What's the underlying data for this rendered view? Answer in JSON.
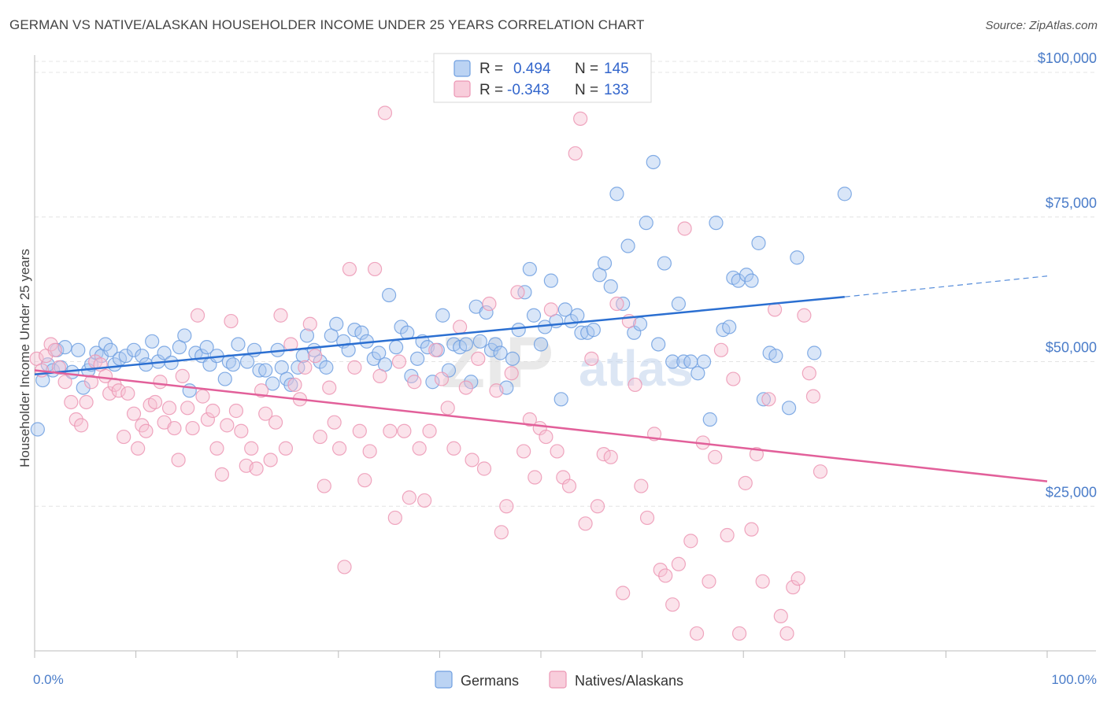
{
  "chart_data": {
    "type": "scatter",
    "title": "GERMAN VS NATIVE/ALASKAN HOUSEHOLDER INCOME UNDER 25 YEARS CORRELATION CHART",
    "source": "Source: ZipAtlas.com",
    "xlabel": "",
    "ylabel": "Householder Income Under 25 years",
    "xlim": [
      0,
      100
    ],
    "ylim": [
      0,
      103000
    ],
    "x_tick_labels": [
      "0.0%",
      "100.0%"
    ],
    "y_ticks": [
      {
        "value": 25000,
        "label": "$25,000"
      },
      {
        "value": 50000,
        "label": "$50,000"
      },
      {
        "value": 75000,
        "label": "$75,000"
      },
      {
        "value": 100000,
        "label": "$100,000"
      }
    ],
    "grid": true,
    "watermark": {
      "part1": "ZIP",
      "part2": "atlas"
    },
    "stats_legend": [
      {
        "r_label": "R =",
        "r_value": "0.494",
        "n_label": "N =",
        "n_value": "145"
      },
      {
        "r_label": "R =",
        "r_value": "-0.343",
        "n_label": "N =",
        "n_value": "133"
      }
    ],
    "legend_position": "top-center",
    "series": [
      {
        "name": "Germans",
        "color": "#6f9fe0",
        "fill": "#aac8f0",
        "line_color": "#2b6fd1",
        "trend": {
          "x0": 0,
          "y0": 47800,
          "x1": 80,
          "y1": 61200,
          "dash_x1": 100,
          "dash_y1": 64800
        },
        "points": [
          [
            0.3,
            38300
          ],
          [
            0.8,
            46800
          ],
          [
            1.3,
            49500
          ],
          [
            1.8,
            48500
          ],
          [
            2.2,
            52000
          ],
          [
            2.6,
            49000
          ],
          [
            3.0,
            52500
          ],
          [
            3.7,
            48200
          ],
          [
            4.3,
            52000
          ],
          [
            4.8,
            45500
          ],
          [
            5.3,
            48500
          ],
          [
            5.6,
            49500
          ],
          [
            6.1,
            51500
          ],
          [
            6.6,
            51000
          ],
          [
            7.0,
            53000
          ],
          [
            7.5,
            52000
          ],
          [
            7.9,
            49500
          ],
          [
            8.4,
            50500
          ],
          [
            9.0,
            51000
          ],
          [
            9.8,
            52000
          ],
          [
            10.6,
            51000
          ],
          [
            11.0,
            49500
          ],
          [
            11.6,
            53500
          ],
          [
            12.2,
            50000
          ],
          [
            12.8,
            51500
          ],
          [
            13.5,
            49800
          ],
          [
            14.3,
            52500
          ],
          [
            14.8,
            54500
          ],
          [
            15.3,
            45000
          ],
          [
            15.9,
            51500
          ],
          [
            16.5,
            51000
          ],
          [
            17.0,
            52500
          ],
          [
            17.3,
            49500
          ],
          [
            18.0,
            51000
          ],
          [
            18.8,
            47000
          ],
          [
            19.2,
            50000
          ],
          [
            19.6,
            49500
          ],
          [
            20.1,
            53000
          ],
          [
            21.0,
            50000
          ],
          [
            21.7,
            52000
          ],
          [
            22.2,
            48500
          ],
          [
            22.8,
            48500
          ],
          [
            23.5,
            46200
          ],
          [
            24.0,
            52000
          ],
          [
            24.4,
            49000
          ],
          [
            24.9,
            47000
          ],
          [
            25.3,
            46000
          ],
          [
            26.0,
            49000
          ],
          [
            26.5,
            51000
          ],
          [
            26.9,
            54500
          ],
          [
            27.6,
            52000
          ],
          [
            28.2,
            50000
          ],
          [
            28.8,
            49000
          ],
          [
            29.3,
            54500
          ],
          [
            29.8,
            56500
          ],
          [
            30.5,
            53500
          ],
          [
            31.0,
            52000
          ],
          [
            31.6,
            55500
          ],
          [
            32.3,
            55000
          ],
          [
            32.8,
            53500
          ],
          [
            33.5,
            50500
          ],
          [
            34.0,
            51500
          ],
          [
            34.6,
            49500
          ],
          [
            35.0,
            61500
          ],
          [
            35.7,
            52500
          ],
          [
            36.2,
            56000
          ],
          [
            36.8,
            55000
          ],
          [
            37.2,
            47500
          ],
          [
            37.8,
            50500
          ],
          [
            38.3,
            53500
          ],
          [
            38.8,
            52500
          ],
          [
            39.3,
            46500
          ],
          [
            39.8,
            52000
          ],
          [
            40.3,
            58000
          ],
          [
            40.9,
            48500
          ],
          [
            41.4,
            53000
          ],
          [
            42.0,
            52500
          ],
          [
            42.6,
            53000
          ],
          [
            43.1,
            46500
          ],
          [
            43.6,
            59500
          ],
          [
            44.0,
            53500
          ],
          [
            44.6,
            58500
          ],
          [
            45.1,
            52000
          ],
          [
            45.5,
            53000
          ],
          [
            46.0,
            51500
          ],
          [
            46.6,
            45500
          ],
          [
            47.2,
            50500
          ],
          [
            47.8,
            55500
          ],
          [
            48.4,
            62000
          ],
          [
            48.9,
            66000
          ],
          [
            49.3,
            58000
          ],
          [
            50.0,
            53000
          ],
          [
            50.4,
            56000
          ],
          [
            51.0,
            64000
          ],
          [
            51.5,
            57000
          ],
          [
            52.0,
            43500
          ],
          [
            52.4,
            59000
          ],
          [
            53.0,
            57000
          ],
          [
            53.6,
            58000
          ],
          [
            54.0,
            55000
          ],
          [
            54.6,
            55000
          ],
          [
            55.2,
            55500
          ],
          [
            55.8,
            65000
          ],
          [
            56.3,
            67000
          ],
          [
            56.9,
            63000
          ],
          [
            57.5,
            79000
          ],
          [
            58.1,
            60000
          ],
          [
            58.6,
            70000
          ],
          [
            59.2,
            55000
          ],
          [
            59.8,
            56500
          ],
          [
            60.4,
            74000
          ],
          [
            61.1,
            84500
          ],
          [
            61.6,
            53000
          ],
          [
            62.2,
            67000
          ],
          [
            63.0,
            50000
          ],
          [
            63.6,
            60000
          ],
          [
            64.1,
            50000
          ],
          [
            64.8,
            50000
          ],
          [
            65.5,
            48000
          ],
          [
            66.1,
            50000
          ],
          [
            66.7,
            40000
          ],
          [
            67.3,
            74000
          ],
          [
            68.0,
            55500
          ],
          [
            68.6,
            56000
          ],
          [
            69.0,
            64500
          ],
          [
            69.5,
            64000
          ],
          [
            70.3,
            65000
          ],
          [
            70.8,
            64000
          ],
          [
            71.5,
            70500
          ],
          [
            72.0,
            43500
          ],
          [
            72.6,
            51500
          ],
          [
            73.2,
            51000
          ],
          [
            74.5,
            42000
          ],
          [
            75.3,
            68000
          ],
          [
            77.0,
            51500
          ],
          [
            80.0,
            79000
          ]
        ]
      },
      {
        "name": "Natives/Alaskans",
        "color": "#ec96b4",
        "fill": "#f6c0d2",
        "line_color": "#e2609a",
        "trend": {
          "x0": 0,
          "y0": 48500,
          "x1": 100,
          "y1": 29300
        },
        "points": [
          [
            0.2,
            50500
          ],
          [
            0.7,
            48500
          ],
          [
            1.1,
            51000
          ],
          [
            1.6,
            53000
          ],
          [
            2.0,
            52000
          ],
          [
            2.4,
            49000
          ],
          [
            3.0,
            46500
          ],
          [
            3.6,
            43000
          ],
          [
            4.1,
            40000
          ],
          [
            4.6,
            39000
          ],
          [
            5.1,
            43000
          ],
          [
            5.6,
            46500
          ],
          [
            6.0,
            50000
          ],
          [
            6.5,
            49500
          ],
          [
            7.0,
            47500
          ],
          [
            7.4,
            44500
          ],
          [
            7.9,
            46000
          ],
          [
            8.3,
            45000
          ],
          [
            8.8,
            37000
          ],
          [
            9.2,
            44500
          ],
          [
            9.8,
            41000
          ],
          [
            10.2,
            35000
          ],
          [
            10.6,
            39000
          ],
          [
            11.0,
            38000
          ],
          [
            11.4,
            42500
          ],
          [
            11.9,
            43000
          ],
          [
            12.4,
            46500
          ],
          [
            12.8,
            39500
          ],
          [
            13.3,
            42000
          ],
          [
            13.8,
            38500
          ],
          [
            14.2,
            33000
          ],
          [
            14.6,
            47500
          ],
          [
            15.1,
            42000
          ],
          [
            15.6,
            38500
          ],
          [
            16.1,
            58000
          ],
          [
            16.6,
            44000
          ],
          [
            17.1,
            40000
          ],
          [
            17.6,
            41500
          ],
          [
            18.0,
            35000
          ],
          [
            18.5,
            30500
          ],
          [
            19.0,
            39000
          ],
          [
            19.4,
            57000
          ],
          [
            19.9,
            41500
          ],
          [
            20.4,
            38000
          ],
          [
            20.9,
            32000
          ],
          [
            21.4,
            35000
          ],
          [
            21.9,
            31500
          ],
          [
            22.4,
            45000
          ],
          [
            22.8,
            41000
          ],
          [
            23.3,
            33000
          ],
          [
            23.8,
            39500
          ],
          [
            24.3,
            58000
          ],
          [
            24.8,
            35000
          ],
          [
            25.3,
            53000
          ],
          [
            25.7,
            46000
          ],
          [
            26.2,
            43500
          ],
          [
            26.7,
            49000
          ],
          [
            27.2,
            56500
          ],
          [
            27.7,
            51000
          ],
          [
            28.2,
            37000
          ],
          [
            28.6,
            28500
          ],
          [
            29.1,
            45500
          ],
          [
            29.6,
            39500
          ],
          [
            30.1,
            35000
          ],
          [
            30.6,
            14500
          ],
          [
            31.1,
            66000
          ],
          [
            31.6,
            49000
          ],
          [
            32.1,
            38000
          ],
          [
            32.6,
            29500
          ],
          [
            33.1,
            34500
          ],
          [
            33.6,
            66000
          ],
          [
            34.1,
            47500
          ],
          [
            34.6,
            93000
          ],
          [
            35.1,
            38000
          ],
          [
            35.6,
            23000
          ],
          [
            36.0,
            50000
          ],
          [
            36.5,
            38000
          ],
          [
            37.0,
            26500
          ],
          [
            37.5,
            46500
          ],
          [
            38.0,
            35000
          ],
          [
            38.5,
            26000
          ],
          [
            39.0,
            38000
          ],
          [
            39.6,
            52000
          ],
          [
            40.2,
            47000
          ],
          [
            40.8,
            42000
          ],
          [
            41.4,
            35000
          ],
          [
            42.0,
            56000
          ],
          [
            42.6,
            45500
          ],
          [
            43.2,
            33000
          ],
          [
            43.8,
            50500
          ],
          [
            44.4,
            31500
          ],
          [
            44.9,
            60000
          ],
          [
            45.6,
            45000
          ],
          [
            46.1,
            20500
          ],
          [
            46.6,
            25000
          ],
          [
            47.1,
            48000
          ],
          [
            47.7,
            62000
          ],
          [
            48.3,
            34500
          ],
          [
            48.9,
            40000
          ],
          [
            49.4,
            30000
          ],
          [
            49.9,
            38500
          ],
          [
            50.5,
            37000
          ],
          [
            51.0,
            59000
          ],
          [
            51.6,
            34500
          ],
          [
            52.2,
            30000
          ],
          [
            52.8,
            28500
          ],
          [
            53.4,
            86000
          ],
          [
            53.9,
            92000
          ],
          [
            54.4,
            22000
          ],
          [
            55.0,
            50500
          ],
          [
            55.6,
            25000
          ],
          [
            56.2,
            34000
          ],
          [
            56.9,
            33500
          ],
          [
            57.5,
            60000
          ],
          [
            58.1,
            10000
          ],
          [
            58.7,
            57000
          ],
          [
            59.3,
            46000
          ],
          [
            59.9,
            28500
          ],
          [
            60.5,
            23000
          ],
          [
            61.2,
            37500
          ],
          [
            61.8,
            14000
          ],
          [
            62.3,
            13000
          ],
          [
            63.0,
            8000
          ],
          [
            63.6,
            15000
          ],
          [
            64.2,
            73000
          ],
          [
            64.8,
            19000
          ],
          [
            65.4,
            3000
          ],
          [
            66.0,
            36000
          ],
          [
            66.6,
            12000
          ],
          [
            67.2,
            33500
          ],
          [
            67.8,
            52000
          ],
          [
            68.4,
            20000
          ],
          [
            69.0,
            47000
          ],
          [
            69.6,
            3000
          ],
          [
            70.2,
            29000
          ],
          [
            70.8,
            21000
          ],
          [
            71.3,
            34000
          ],
          [
            71.9,
            12000
          ],
          [
            72.5,
            43500
          ],
          [
            73.1,
            59000
          ],
          [
            73.7,
            6000
          ],
          [
            74.3,
            3000
          ],
          [
            74.9,
            11000
          ],
          [
            75.4,
            12500
          ],
          [
            76.0,
            58000
          ],
          [
            76.5,
            48000
          ],
          [
            76.9,
            44000
          ],
          [
            77.6,
            31000
          ]
        ]
      }
    ]
  }
}
